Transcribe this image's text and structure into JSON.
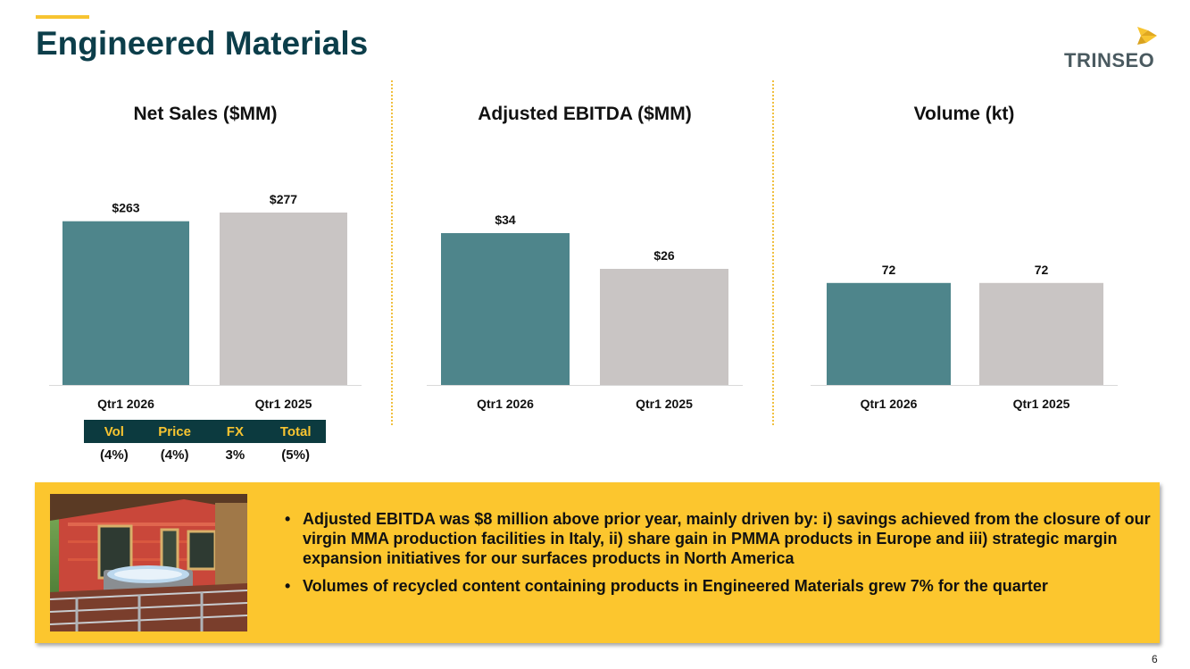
{
  "page": {
    "title": "Engineered Materials",
    "logo_text": "TRINSEO",
    "page_number": "6"
  },
  "colors": {
    "current": "#4e858b",
    "prior": "#c9c5c4",
    "title": "#0c3e4a",
    "accent": "#f7c431",
    "panel": "#fcc62e",
    "bridge_header": "#0c3a3f"
  },
  "chart_data": [
    {
      "type": "bar",
      "title": "Net Sales ($MM)",
      "categories": [
        "Qtr1 2026",
        "Qtr1 2025"
      ],
      "values": [
        263,
        277
      ],
      "labels": [
        "$263",
        "$277"
      ],
      "ylim": [
        0,
        330
      ]
    },
    {
      "type": "bar",
      "title": "Adjusted EBITDA ($MM)",
      "categories": [
        "Qtr1 2026",
        "Qtr1 2025"
      ],
      "values": [
        34,
        26
      ],
      "labels": [
        "$34",
        "$26"
      ],
      "ylim": [
        0,
        46
      ]
    },
    {
      "type": "bar",
      "title": "Volume (kt)",
      "categories": [
        "Qtr1 2026",
        "Qtr1 2025"
      ],
      "values": [
        72,
        72
      ],
      "labels": [
        "72",
        "72"
      ],
      "ylim": [
        0,
        145
      ]
    }
  ],
  "bridge": {
    "headers": [
      "Vol",
      "Price",
      "FX",
      "Total"
    ],
    "values": [
      "(4%)",
      "(4%)",
      "3%",
      "(5%)"
    ]
  },
  "commentary": {
    "bullet_char": "•",
    "bullets": [
      "Adjusted EBITDA was $8 million above prior year, mainly driven by: i) savings achieved from the closure of our virgin MMA production facilities in Italy, ii) share gain in PMMA products in Europe and iii) strategic margin expansion initiatives for our surfaces products in North America",
      "Volumes of recycled content containing products in Engineered Materials grew 7% for the quarter"
    ]
  }
}
